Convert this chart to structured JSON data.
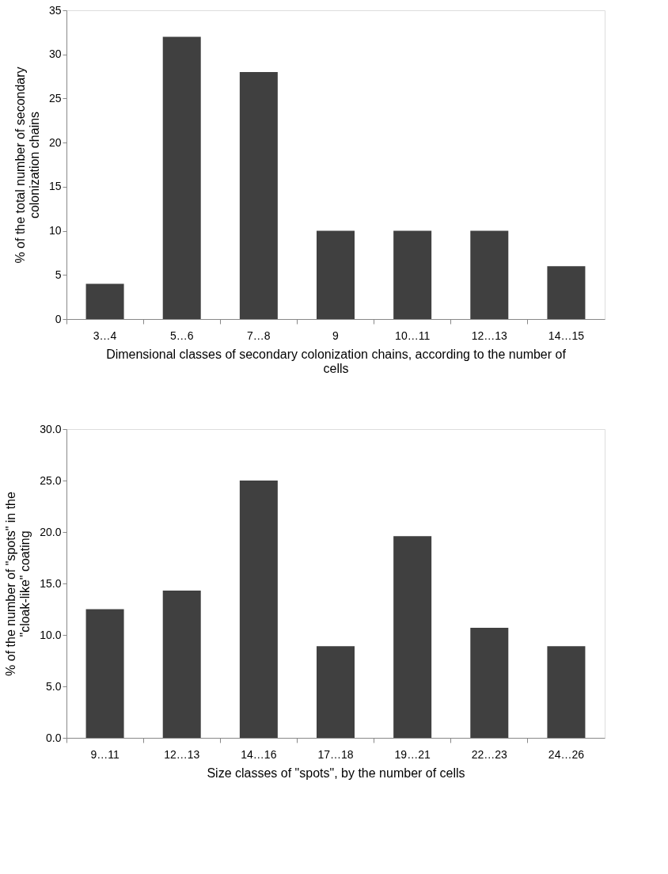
{
  "chart_data": [
    {
      "type": "bar",
      "xlabel": "Dimensional classes of secondary colonization chains, according to the number of cells",
      "ylabel": "% of the total number of secondary colonization chains",
      "categories": [
        "3…4",
        "5…6",
        "7…8",
        "9",
        "10…11",
        "12…13",
        "14…15"
      ],
      "values": [
        4,
        32,
        28,
        10,
        10,
        10,
        6
      ],
      "color": "#404040",
      "ylim": [
        0,
        35
      ],
      "yticks": [
        0,
        5,
        10,
        15,
        20,
        25,
        30,
        35
      ],
      "grid": false
    },
    {
      "type": "bar",
      "xlabel": "Size classes of \"spots\", by the number of cells",
      "ylabel": "% of the number of \"spots\" in the \"cloak-like\" coating",
      "categories": [
        "9…11",
        "12…13",
        "14…16",
        "17…18",
        "19…21",
        "22…23",
        "24…26"
      ],
      "values": [
        12.5,
        14.3,
        25.0,
        8.9,
        19.6,
        10.7,
        8.9
      ],
      "color": "#404040",
      "ylim": [
        0,
        30
      ],
      "yticks": [
        {
          "value": 0,
          "label": "0.0"
        },
        {
          "value": 5,
          "label": "5.0"
        },
        {
          "value": 10,
          "label": "10.0"
        },
        {
          "value": 15,
          "label": "15.0"
        },
        {
          "value": 20,
          "label": "20.0"
        },
        {
          "value": 25,
          "label": "25.0"
        },
        {
          "value": 30,
          "label": "30.0"
        }
      ],
      "grid": false
    }
  ]
}
